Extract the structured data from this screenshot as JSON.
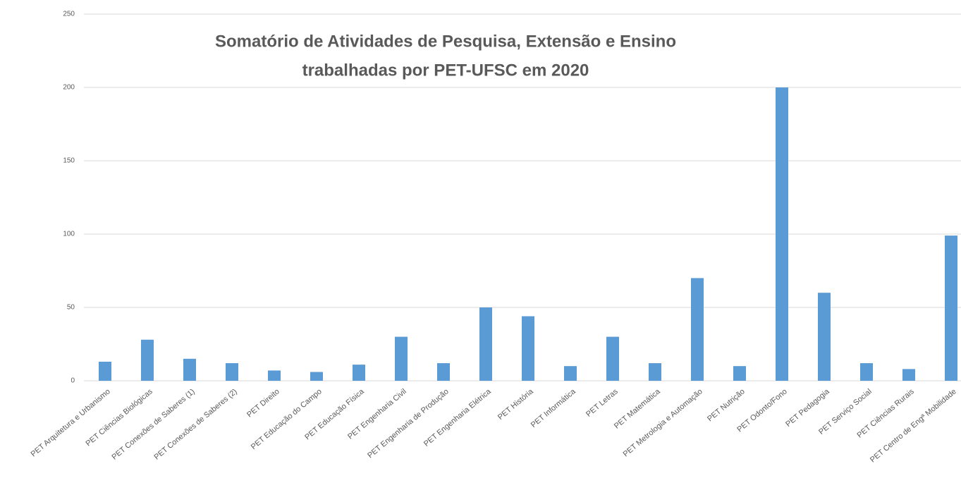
{
  "chart_data": {
    "type": "bar",
    "title": [
      "Somatório  de Atividades de  Pesquisa, Extensão e Ensino",
      "trabalhadas por PET-UFSC em 2020"
    ],
    "categories": [
      "PET Arquitetura e Urbanismo",
      "PET Ciências Biológicas",
      "PET Conexões de Saberes (1)",
      "PET Conexões de Saberes (2)",
      "PET Direito",
      "PET Educação do Campo",
      "PET Educação Física",
      "PET Engenharia Civil",
      "PET Engenharia de Produção",
      "PET Engenharia Elétrica",
      "PET História",
      "PET Informática",
      "PET Letras",
      "PET Matemática",
      "PET Metrologia e Automação",
      "PET Nutrição",
      "PET Odonto/Fono",
      "PET Pedagogia",
      "PET Serviço Social",
      "PET Ciências Rurais",
      "PET Centro de Engª Mobilidade"
    ],
    "values": [
      13,
      28,
      15,
      12,
      7,
      6,
      11,
      30,
      12,
      50,
      44,
      10,
      30,
      12,
      70,
      10,
      200,
      60,
      12,
      8,
      99
    ],
    "color": "#5b9bd5",
    "ylim": [
      0,
      250
    ],
    "yticks": [
      0,
      50,
      100,
      150,
      200,
      250
    ],
    "grid": true
  }
}
